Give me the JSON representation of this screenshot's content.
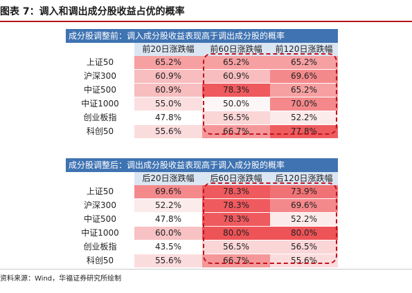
{
  "figure_title": "图表 7：调入和调出成分股收益占优的概率",
  "source_note": "资料来源：Wind，华福证券研究所绘制",
  "tables": [
    {
      "banner": "成分股调整前：调入成分股收益表现高于调出成分股的概率",
      "columns": [
        "前20日涨跌幅",
        "前60日涨跌幅",
        "前120日涨跌幅"
      ],
      "rows": [
        {
          "name": "上证50",
          "cells": [
            {
              "text": "65.2%",
              "color": "#f6a0a2"
            },
            {
              "text": "65.2%",
              "color": "#f6a0a2"
            },
            {
              "text": "65.2%",
              "color": "#f6a0a2"
            }
          ]
        },
        {
          "name": "沪深300",
          "cells": [
            {
              "text": "60.9%",
              "color": "#f8bdbf"
            },
            {
              "text": "60.9%",
              "color": "#f8bdbf"
            },
            {
              "text": "69.6%",
              "color": "#f4898c"
            }
          ]
        },
        {
          "name": "中证500",
          "cells": [
            {
              "text": "60.9%",
              "color": "#f8bdbf"
            },
            {
              "text": "78.3%",
              "color": "#ef5a5e"
            },
            {
              "text": "65.2%",
              "color": "#f6a0a2"
            }
          ]
        },
        {
          "name": "中证1000",
          "cells": [
            {
              "text": "55.0%",
              "color": "#fbdfe0"
            },
            {
              "text": "50.0%",
              "color": "#fdf6f6"
            },
            {
              "text": "70.0%",
              "color": "#f4888b"
            }
          ]
        },
        {
          "name": "创业板指",
          "cells": [
            {
              "text": "47.8%",
              "color": "#ffffff"
            },
            {
              "text": "56.5%",
              "color": "#fad6d7"
            },
            {
              "text": "52.2%",
              "color": "#fcebeb"
            }
          ]
        },
        {
          "name": "科创50",
          "cells": [
            {
              "text": "55.6%",
              "color": "#fbdcdd"
            },
            {
              "text": "66.7%",
              "color": "#f59799"
            },
            {
              "text": "77.8%",
              "color": "#ef5c60"
            }
          ]
        }
      ]
    },
    {
      "banner": "成分股调整后：调出成分股收益表现高于调入成分股的概率",
      "columns": [
        "后20日涨跌幅",
        "后60日涨跌幅",
        "后120日涨跌幅"
      ],
      "rows": [
        {
          "name": "上证50",
          "cells": [
            {
              "text": "69.6%",
              "color": "#f4898c"
            },
            {
              "text": "78.3%",
              "color": "#ef5a5e"
            },
            {
              "text": "73.9%",
              "color": "#f17275"
            }
          ]
        },
        {
          "name": "沪深300",
          "cells": [
            {
              "text": "52.2%",
              "color": "#fcebeb"
            },
            {
              "text": "78.3%",
              "color": "#ef5a5e"
            },
            {
              "text": "69.6%",
              "color": "#f4898c"
            }
          ]
        },
        {
          "name": "中证500",
          "cells": [
            {
              "text": "47.8%",
              "color": "#ffffff"
            },
            {
              "text": "78.3%",
              "color": "#ef5a5e"
            },
            {
              "text": "52.2%",
              "color": "#fcebeb"
            }
          ]
        },
        {
          "name": "中证1000",
          "cells": [
            {
              "text": "60.0%",
              "color": "#f8c2c4"
            },
            {
              "text": "80.0%",
              "color": "#ee5357"
            },
            {
              "text": "80.0%",
              "color": "#ee5357"
            }
          ]
        },
        {
          "name": "创业板指",
          "cells": [
            {
              "text": "43.5%",
              "color": "#ffffff"
            },
            {
              "text": "56.5%",
              "color": "#fad6d7"
            },
            {
              "text": "56.5%",
              "color": "#fad6d7"
            }
          ]
        },
        {
          "name": "科创50",
          "cells": [
            {
              "text": "55.6%",
              "color": "#fbdcdd"
            },
            {
              "text": "66.7%",
              "color": "#f59799"
            },
            {
              "text": "55.6%",
              "color": "#fbdcdd"
            }
          ]
        }
      ]
    }
  ],
  "accent_color": "#c0121c",
  "banner_color": "#3f73b2"
}
